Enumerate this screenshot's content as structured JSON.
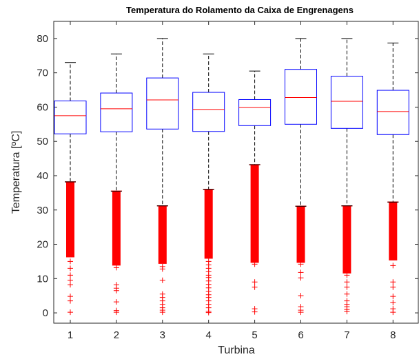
{
  "chart_data": {
    "type": "boxplot",
    "title": "Temperatura do Rolamento da Caixa de Engrenagens",
    "xlabel": "Turbina",
    "ylabel": "Temperatura [ºC]",
    "ylim": [
      -3,
      85
    ],
    "yticks": [
      0,
      10,
      20,
      30,
      40,
      50,
      60,
      70,
      80
    ],
    "categories": [
      "1",
      "2",
      "3",
      "4",
      "5",
      "6",
      "7",
      "8"
    ],
    "grid": false,
    "box_color": "#0000ff",
    "median_color": "#ff0000",
    "whisker_color": "#000000",
    "outlier_color": "#ff0000",
    "boxes": [
      {
        "label": "1",
        "whisker_low": 38.2,
        "q1": 52.2,
        "median": 57.5,
        "q3": 61.8,
        "whisker_high": 73.0,
        "outlier_band": [
          16.2,
          38.2
        ],
        "outliers": [
          29,
          18.5,
          17,
          15,
          13,
          11,
          9.5,
          8.2,
          4.8,
          3.5,
          0.2
        ]
      },
      {
        "label": "2",
        "whisker_low": 35.5,
        "q1": 52.8,
        "median": 59.5,
        "q3": 64.1,
        "whisker_high": 75.5,
        "outlier_band": [
          13.8,
          35.5
        ],
        "outliers": [
          13.2,
          8.2,
          7.2,
          6.5,
          3.2,
          0.7,
          0.2
        ]
      },
      {
        "label": "3",
        "whisker_low": 31.2,
        "q1": 53.6,
        "median": 62.1,
        "q3": 68.5,
        "whisker_high": 80.0,
        "outlier_band": [
          14.3,
          31.2
        ],
        "outliers": [
          13.5,
          12.8,
          9.5,
          5.5,
          4.5,
          3.5,
          2.5,
          1.5,
          0.8,
          0.2
        ]
      },
      {
        "label": "4",
        "whisker_low": 36.0,
        "q1": 52.9,
        "median": 59.3,
        "q3": 64.3,
        "whisker_high": 75.5,
        "outlier_band": [
          15.8,
          36.0
        ],
        "outliers": [
          15,
          14,
          13,
          12,
          11,
          10.3,
          9.3,
          8.3,
          7.3,
          6.3,
          5.3,
          4.5,
          3.5,
          2.5,
          1.5,
          0.5,
          0.1
        ]
      },
      {
        "label": "5",
        "whisker_low": 43.2,
        "q1": 54.6,
        "median": 59.9,
        "q3": 62.2,
        "whisker_high": 70.5,
        "outlier_band": [
          14.6,
          43.2
        ],
        "outliers": [
          14.2,
          9.0,
          7.5,
          1.2,
          0.3
        ]
      },
      {
        "label": "6",
        "whisker_low": 31.1,
        "q1": 55.0,
        "median": 62.8,
        "q3": 71.0,
        "whisker_high": 80.0,
        "outlier_band": [
          14.6,
          31.1
        ],
        "outliers": [
          14.2,
          11.8,
          10.2,
          5.0,
          1.8,
          0.8,
          0.2
        ]
      },
      {
        "label": "7",
        "whisker_low": 31.2,
        "q1": 53.8,
        "median": 61.7,
        "q3": 69.0,
        "whisker_high": 80.0,
        "outlier_band": [
          11.5,
          31.2
        ],
        "outliers": [
          11.0,
          9.0,
          7.5,
          5.5,
          3.5,
          2.5,
          1.8,
          1.0,
          0.4
        ]
      },
      {
        "label": "8",
        "whisker_low": 32.3,
        "q1": 52.0,
        "median": 58.7,
        "q3": 64.9,
        "whisker_high": 78.7,
        "outlier_band": [
          15.3,
          32.3
        ],
        "outliers": [
          13.8,
          9.0,
          7.5,
          4.8,
          3.0,
          1.2,
          0.2
        ]
      }
    ]
  }
}
